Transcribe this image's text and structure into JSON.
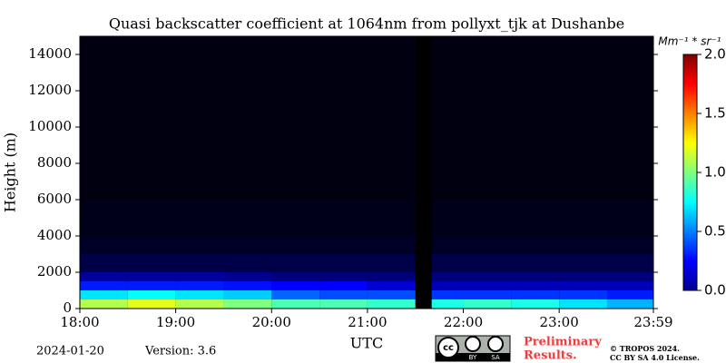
{
  "chart_data": {
    "type": "heatmap",
    "title": "Quasi backscatter coefficient at 1064nm from pollyxt_tjk at Dushanbe",
    "x_label": "UTC",
    "y_label": "Height (m)",
    "x_edges": [
      18,
      18.5,
      19,
      19.5,
      20,
      20.5,
      21,
      21.5,
      21.67,
      22,
      22.5,
      23,
      23.5,
      23.983
    ],
    "y_edges": [
      0,
      500,
      1000,
      1500,
      2000,
      3000,
      4000,
      6000,
      8000,
      10000,
      12000,
      15000
    ],
    "z": [
      [
        1.1,
        0.7,
        0.3,
        0.18,
        0.1,
        0.06,
        0.04,
        0.03,
        0.03,
        0.03,
        0.03
      ],
      [
        1.2,
        0.75,
        0.3,
        0.18,
        0.1,
        0.06,
        0.04,
        0.03,
        0.03,
        0.03,
        0.03
      ],
      [
        1.1,
        0.7,
        0.3,
        0.18,
        0.1,
        0.06,
        0.04,
        0.03,
        0.03,
        0.03,
        0.03
      ],
      [
        1.0,
        0.65,
        0.28,
        0.17,
        0.1,
        0.06,
        0.04,
        0.03,
        0.03,
        0.03,
        0.03
      ],
      [
        0.9,
        0.45,
        0.25,
        0.15,
        0.1,
        0.06,
        0.04,
        0.03,
        0.03,
        0.03,
        0.03
      ],
      [
        0.9,
        0.4,
        0.25,
        0.15,
        0.1,
        0.06,
        0.04,
        0.03,
        0.03,
        0.03,
        0.03
      ],
      [
        0.85,
        0.4,
        0.22,
        0.15,
        0.1,
        0.06,
        0.04,
        0.03,
        0.03,
        0.03,
        0.03
      ],
      [
        null,
        null,
        null,
        null,
        null,
        null,
        null,
        null,
        null,
        null,
        null
      ],
      [
        0.8,
        0.35,
        0.2,
        0.15,
        0.1,
        0.06,
        0.04,
        0.03,
        0.03,
        0.03,
        0.03
      ],
      [
        0.85,
        0.35,
        0.2,
        0.15,
        0.1,
        0.06,
        0.04,
        0.03,
        0.03,
        0.03,
        0.03
      ],
      [
        0.8,
        0.35,
        0.2,
        0.15,
        0.1,
        0.06,
        0.04,
        0.03,
        0.03,
        0.03,
        0.03
      ],
      [
        0.7,
        0.35,
        0.2,
        0.15,
        0.1,
        0.06,
        0.04,
        0.03,
        0.03,
        0.03,
        0.03
      ],
      [
        0.6,
        0.3,
        0.2,
        0.15,
        0.1,
        0.06,
        0.04,
        0.03,
        0.03,
        0.03,
        0.03
      ]
    ],
    "xlim": [
      18,
      23.983
    ],
    "xticks": [
      {
        "value": 18,
        "label": "18:00"
      },
      {
        "value": 19,
        "label": "19:00"
      },
      {
        "value": 20,
        "label": "20:00"
      },
      {
        "value": 21,
        "label": "21:00"
      },
      {
        "value": 22,
        "label": "22:00"
      },
      {
        "value": 23,
        "label": "23:00"
      },
      {
        "value": 23.983,
        "label": "23:59"
      }
    ],
    "ylim": [
      0,
      15000
    ],
    "yticks": [
      0,
      2000,
      4000,
      6000,
      8000,
      10000,
      12000,
      14000
    ],
    "colormap": "jet",
    "clim": [
      0,
      2
    ],
    "cticks": [
      {
        "value": 0,
        "label": "0.0"
      },
      {
        "value": 0.5,
        "label": "0.5"
      },
      {
        "value": 1,
        "label": "1.0"
      },
      {
        "value": 1.5,
        "label": "1.5"
      },
      {
        "value": 2,
        "label": "2.0"
      }
    ],
    "colorbar_label": "Mm⁻¹ * sr⁻¹"
  },
  "footer": {
    "date": "2024-01-20",
    "version": "Version: 3.6",
    "badge": [
      "BY",
      "SA"
    ],
    "status": [
      "Preliminary",
      "Results."
    ],
    "copyright": [
      "© TROPOS 2024.",
      "CC BY SA 4.0 License."
    ]
  }
}
